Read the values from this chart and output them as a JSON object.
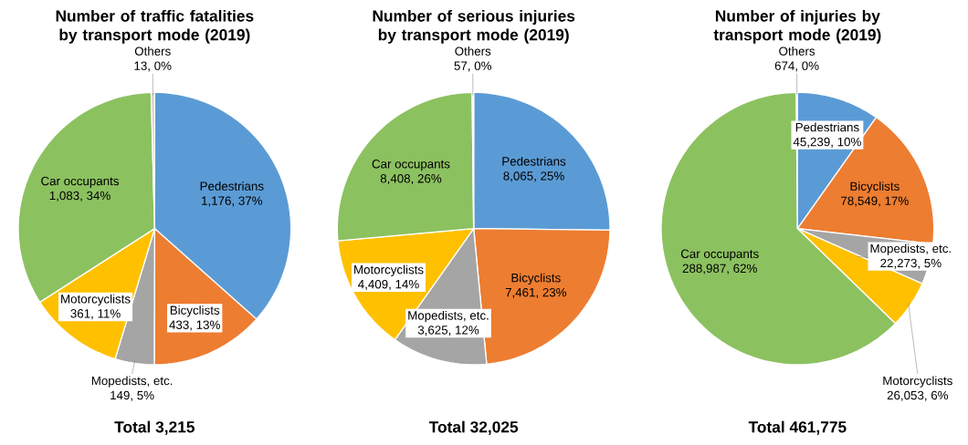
{
  "chart_data": [
    {
      "type": "pie",
      "title": "Number of traffic fatalities by transport mode (2019)",
      "categories": [
        "Pedestrians",
        "Bicyclists",
        "Mopedists, etc.",
        "Motorcyclists",
        "Car occupants",
        "Others"
      ],
      "values": [
        1176,
        433,
        149,
        361,
        1083,
        13
      ],
      "colors": [
        "#5b9bd5",
        "#ed7d31",
        "#a5a5a5",
        "#ffc000",
        "#8cc160",
        "#d0d0d0"
      ],
      "value_labels": [
        "1,176,  37%",
        "433,  13%",
        "149,  5%",
        "361,  11%",
        "1,083,  34%",
        "13,  0%"
      ],
      "annotations": [
        "Total 3,215"
      ]
    },
    {
      "type": "pie",
      "title": "Number of serious injuries by transport mode (2019)",
      "categories": [
        "Pedestrians",
        "Bicyclists",
        "Mopedists, etc.",
        "Motorcyclists",
        "Car occupants",
        "Others"
      ],
      "values": [
        8065,
        7461,
        3625,
        4409,
        8408,
        57
      ],
      "colors": [
        "#5b9bd5",
        "#ed7d31",
        "#a5a5a5",
        "#ffc000",
        "#8cc160",
        "#d0d0d0"
      ],
      "value_labels": [
        "8,065,  25%",
        "7,461,  23%",
        "3,625,  12%",
        "4,409,  14%",
        "8,408,  26%",
        "57,  0%"
      ],
      "annotations": [
        "Total 32,025"
      ]
    },
    {
      "type": "pie",
      "title": "Number of injuries by transport mode (2019)",
      "categories": [
        "Pedestrians",
        "Bicyclists",
        "Mopedists, etc.",
        "Motorcyclists",
        "Car occupants",
        "Others"
      ],
      "values": [
        45239,
        78549,
        22273,
        26053,
        288987,
        674
      ],
      "colors": [
        "#5b9bd5",
        "#ed7d31",
        "#a5a5a5",
        "#ffc000",
        "#8cc160",
        "#d0d0d0"
      ],
      "value_labels": [
        "45,239,  10%",
        "78,549,  17%",
        "22,273,  5%",
        "26,053,  6%",
        "288,987,  62%",
        "674,  0%"
      ],
      "annotations": [
        "Total 461,775"
      ]
    }
  ]
}
